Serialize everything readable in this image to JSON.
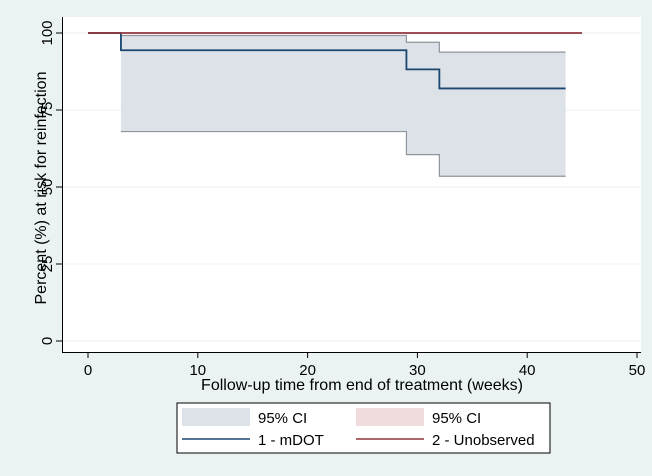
{
  "chart_data": {
    "type": "line",
    "subtype": "kaplan-meier step survival",
    "xlabel": "Follow-up time from end of treatment (weeks)",
    "ylabel": "Percent (%) at risk for reinfection",
    "xlim": [
      0,
      50
    ],
    "ylim": [
      0,
      100
    ],
    "x_ticks": [
      0,
      10,
      20,
      30,
      40,
      50
    ],
    "y_ticks": [
      0,
      25,
      50,
      75,
      100
    ],
    "grid": "horizontal",
    "legend_position": "bottom",
    "legend": [
      {
        "kind": "band",
        "label": "95% CI",
        "color": "#dde1e8"
      },
      {
        "kind": "band",
        "label": "95% CI",
        "color": "#f0dcdc"
      },
      {
        "kind": "line",
        "label": "1 - mDOT",
        "color": "#1a476f"
      },
      {
        "kind": "line",
        "label": "2 - Unobserved",
        "color": "#90353b"
      }
    ],
    "series": [
      {
        "name": "1 - mDOT",
        "color": "#1a476f",
        "steps": [
          [
            0,
            100
          ],
          [
            3,
            94.4
          ],
          [
            29,
            88.2
          ],
          [
            32,
            82.0
          ],
          [
            43.5,
            82.0
          ]
        ],
        "ci_lower": [
          [
            3,
            68.0
          ],
          [
            29,
            60.5
          ],
          [
            32,
            53.5
          ],
          [
            43.5,
            53.5
          ]
        ],
        "ci_upper": [
          [
            3,
            99.2
          ],
          [
            29,
            97.0
          ],
          [
            32,
            93.8
          ],
          [
            43.5,
            93.8
          ]
        ],
        "ci_color": "#dde1e8",
        "ci_edge_color": "#8e959c"
      },
      {
        "name": "2 - Unobserved",
        "color": "#90353b",
        "steps": [
          [
            0,
            100
          ],
          [
            45,
            100
          ]
        ]
      }
    ]
  }
}
